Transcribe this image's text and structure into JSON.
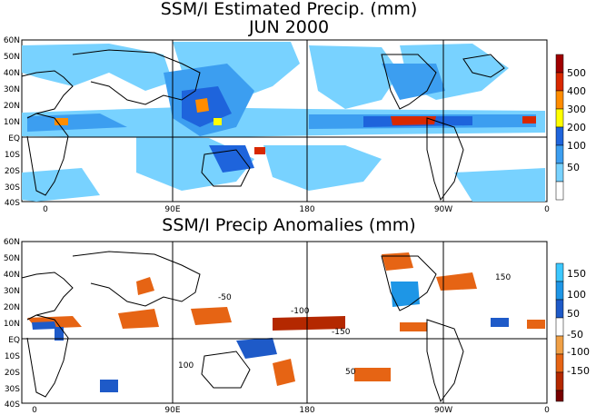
{
  "top_panel": {
    "title_line1": "SSM/I Estimated Precip. (mm)",
    "title_line2": "JUN 2000",
    "lat_labels": [
      "60N",
      "50N",
      "40N",
      "30N",
      "20N",
      "10N",
      "EQ",
      "10S",
      "20S",
      "30S",
      "40S"
    ],
    "lon_labels": [
      "0",
      "90E",
      "180",
      "90W",
      "0"
    ],
    "colorbar": {
      "labels": [
        "500",
        "400",
        "300",
        "200",
        "100",
        "50"
      ],
      "colors": [
        "#a00000",
        "#d82800",
        "#ff8c00",
        "#ffff00",
        "#1e64dc",
        "#3c9ef0",
        "#78d2ff",
        "#ffffff"
      ]
    }
  },
  "bottom_panel": {
    "title": "SSM/I Precip Anomalies (mm)",
    "lat_labels": [
      "60N",
      "50N",
      "40N",
      "30N",
      "20N",
      "10N",
      "EQ",
      "10S",
      "20S",
      "30S",
      "40S"
    ],
    "lon_labels": [
      "0",
      "90E",
      "180",
      "90W",
      "0"
    ],
    "colorbar": {
      "labels": [
        "150",
        "100",
        "50",
        "-50",
        "-100",
        "-150"
      ],
      "colors": [
        "#3cc8ff",
        "#1e96e6",
        "#1e5ac8",
        "#ffffff",
        "#f0a046",
        "#e66414",
        "#b42800",
        "#780000"
      ]
    },
    "contour_labels": [
      "-50",
      "-100",
      "-150",
      "50",
      "100",
      "150"
    ]
  },
  "colors": {
    "land_outline": "#000000",
    "precip_light": "#78d2ff",
    "precip_mid": "#3c9ef0",
    "precip_blue": "#1e64dc",
    "precip_yellow": "#ffff00",
    "precip_orange": "#ff8c00",
    "precip_red": "#d82800",
    "anom_pos": "#1e5ac8",
    "anom_neg": "#e66414"
  }
}
